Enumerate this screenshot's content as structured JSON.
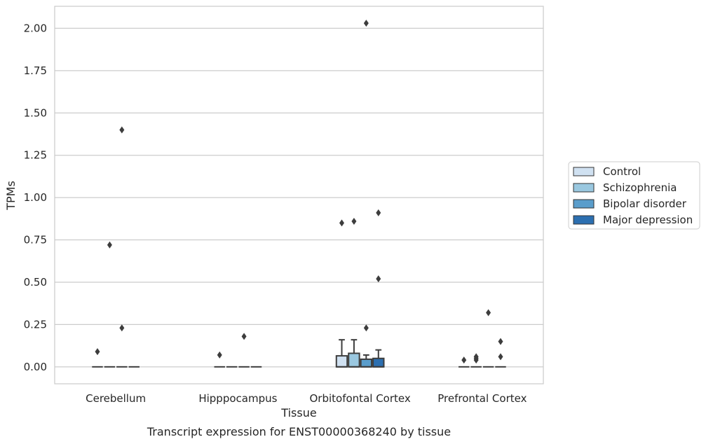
{
  "chart_data": {
    "type": "box",
    "title": "",
    "caption": "Transcript expression for ENST00000368240 by tissue",
    "xlabel": "Tissue",
    "ylabel": "TPMs",
    "ylim": [
      -0.1,
      2.13
    ],
    "yticks": [
      "0.00",
      "0.25",
      "0.50",
      "0.75",
      "1.00",
      "1.25",
      "1.50",
      "1.75",
      "2.00"
    ],
    "grid": true,
    "legend_position": "right",
    "categories": [
      "Cerebellum",
      "Hipppocampus",
      "Orbitofontal Cortex",
      "Prefrontal Cortex"
    ],
    "series": [
      {
        "name": "Control",
        "color": "#d0e1f1",
        "boxes": [
          {
            "q1": 0,
            "median": 0,
            "q3": 0,
            "whisker_low": 0,
            "whisker_high": 0,
            "outliers": [
              0.09
            ]
          },
          {
            "q1": 0,
            "median": 0,
            "q3": 0,
            "whisker_low": 0,
            "whisker_high": 0,
            "outliers": [
              0.07
            ]
          },
          {
            "q1": 0,
            "median": 0,
            "q3": 0.065,
            "whisker_low": 0,
            "whisker_high": 0.16,
            "outliers": [
              0.85
            ]
          },
          {
            "q1": 0,
            "median": 0,
            "q3": 0,
            "whisker_low": 0,
            "whisker_high": 0,
            "outliers": [
              0.04
            ]
          }
        ]
      },
      {
        "name": "Schizophrenia",
        "color": "#9ac8e0",
        "boxes": [
          {
            "q1": 0,
            "median": 0,
            "q3": 0,
            "whisker_low": 0,
            "whisker_high": 0,
            "outliers": [
              0.72
            ]
          },
          {
            "q1": 0,
            "median": 0,
            "q3": 0,
            "whisker_low": 0,
            "whisker_high": 0,
            "outliers": []
          },
          {
            "q1": 0,
            "median": 0,
            "q3": 0.08,
            "whisker_low": 0,
            "whisker_high": 0.16,
            "outliers": [
              0.86
            ]
          },
          {
            "q1": 0,
            "median": 0,
            "q3": 0,
            "whisker_low": 0,
            "whisker_high": 0,
            "outliers": [
              0.04,
              0.05,
              0.06
            ]
          }
        ]
      },
      {
        "name": "Bipolar disorder",
        "color": "#5a9dcb",
        "boxes": [
          {
            "q1": 0,
            "median": 0,
            "q3": 0,
            "whisker_low": 0,
            "whisker_high": 0,
            "outliers": [
              0.23,
              1.4
            ]
          },
          {
            "q1": 0,
            "median": 0,
            "q3": 0,
            "whisker_low": 0,
            "whisker_high": 0,
            "outliers": [
              0.18
            ]
          },
          {
            "q1": 0,
            "median": 0,
            "q3": 0.045,
            "whisker_low": 0,
            "whisker_high": 0.07,
            "outliers": [
              0.23,
              2.03
            ]
          },
          {
            "q1": 0,
            "median": 0,
            "q3": 0,
            "whisker_low": 0,
            "whisker_high": 0,
            "outliers": [
              0.32
            ]
          }
        ]
      },
      {
        "name": "Major depression",
        "color": "#2c6fb0",
        "boxes": [
          {
            "q1": 0,
            "median": 0,
            "q3": 0,
            "whisker_low": 0,
            "whisker_high": 0,
            "outliers": []
          },
          {
            "q1": 0,
            "median": 0,
            "q3": 0,
            "whisker_low": 0,
            "whisker_high": 0,
            "outliers": []
          },
          {
            "q1": 0,
            "median": 0,
            "q3": 0.05,
            "whisker_low": 0,
            "whisker_high": 0.1,
            "outliers": [
              0.52,
              0.91
            ]
          },
          {
            "q1": 0,
            "median": 0,
            "q3": 0,
            "whisker_low": 0,
            "whisker_high": 0,
            "outliers": [
              0.06,
              0.15
            ]
          }
        ]
      }
    ]
  }
}
